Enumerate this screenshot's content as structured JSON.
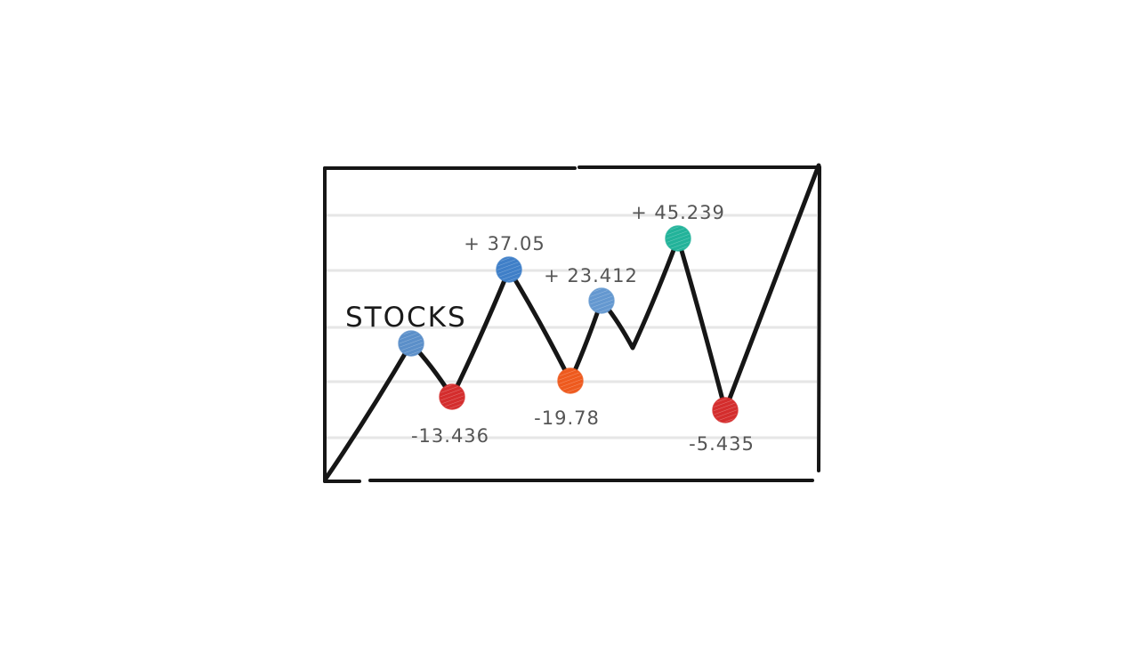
{
  "chart_data": {
    "type": "line",
    "title": "STOCKS",
    "grid": true,
    "colors": {
      "line": "#161616",
      "frame": "#161616",
      "grid": "#e6e6e6",
      "label": "#555555"
    },
    "points": [
      {
        "x": 0,
        "y": 0
      },
      {
        "x": 1,
        "y": 152,
        "marker": "#5b8fc9"
      },
      {
        "x": 2,
        "y": 92,
        "marker": "#d42d2d",
        "label": "-13.436"
      },
      {
        "x": 3,
        "y": 235,
        "marker": "#3f7fc8",
        "label": "+ 37.05"
      },
      {
        "x": 4,
        "y": 110,
        "marker": "#ee5a1e",
        "label": "-19.78"
      },
      {
        "x": 5,
        "y": 200,
        "marker": "#6498d0",
        "label": "+ 23.412"
      },
      {
        "x": 6,
        "y": 147
      },
      {
        "x": 7,
        "y": 270,
        "marker": "#22b39a",
        "label": "+ 45.239"
      },
      {
        "x": 8,
        "y": 77,
        "marker": "#d42d2d",
        "label": "-5.435"
      },
      {
        "x": 9,
        "y": 352
      }
    ]
  }
}
